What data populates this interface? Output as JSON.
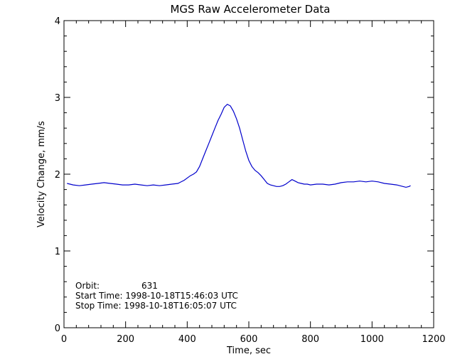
{
  "chart_data": {
    "type": "line",
    "title": "MGS Raw Accelerometer Data",
    "xlabel": "Time, sec",
    "ylabel": "Velocity Change, mm/s",
    "xlim": [
      0,
      1200
    ],
    "ylim": [
      0,
      4
    ],
    "x_ticks": [
      "0",
      "200",
      "400",
      "600",
      "800",
      "1000",
      "1200"
    ],
    "y_ticks": [
      "0",
      "1",
      "2",
      "3",
      "4"
    ],
    "line_color": "#0000cc",
    "grid": false,
    "annotations": {
      "orbit_label": "Orbit:",
      "orbit_value": "631",
      "start_time": "Start Time: 1998-10-18T15:46:03 UTC",
      "stop_time": "Stop Time: 1998-10-18T16:05:07 UTC"
    },
    "series": [
      {
        "x": [
          10,
          30,
          50,
          70,
          90,
          110,
          130,
          150,
          170,
          190,
          210,
          230,
          250,
          270,
          290,
          310,
          330,
          350,
          370,
          390,
          410,
          420,
          430,
          440,
          450,
          460,
          470,
          480,
          490,
          500,
          510,
          520,
          530,
          540,
          550,
          560,
          570,
          580,
          590,
          600,
          610,
          620,
          630,
          640,
          650,
          660,
          670,
          680,
          690,
          700,
          710,
          720,
          730,
          740,
          750,
          760,
          770,
          780,
          790,
          800,
          820,
          840,
          860,
          880,
          900,
          920,
          940,
          960,
          980,
          1000,
          1020,
          1040,
          1060,
          1080,
          1100,
          1110,
          1120,
          1125
        ],
        "y": [
          1.88,
          1.86,
          1.85,
          1.86,
          1.87,
          1.88,
          1.89,
          1.88,
          1.87,
          1.86,
          1.86,
          1.87,
          1.86,
          1.85,
          1.86,
          1.85,
          1.86,
          1.87,
          1.88,
          1.92,
          1.98,
          2.0,
          2.03,
          2.1,
          2.2,
          2.3,
          2.4,
          2.5,
          2.6,
          2.7,
          2.78,
          2.87,
          2.91,
          2.89,
          2.82,
          2.72,
          2.6,
          2.45,
          2.3,
          2.18,
          2.1,
          2.05,
          2.02,
          1.98,
          1.93,
          1.88,
          1.86,
          1.85,
          1.84,
          1.84,
          1.85,
          1.87,
          1.9,
          1.93,
          1.91,
          1.89,
          1.88,
          1.87,
          1.87,
          1.86,
          1.87,
          1.87,
          1.86,
          1.87,
          1.89,
          1.9,
          1.9,
          1.91,
          1.9,
          1.91,
          1.9,
          1.88,
          1.87,
          1.86,
          1.84,
          1.83,
          1.84,
          1.85
        ]
      }
    ]
  }
}
